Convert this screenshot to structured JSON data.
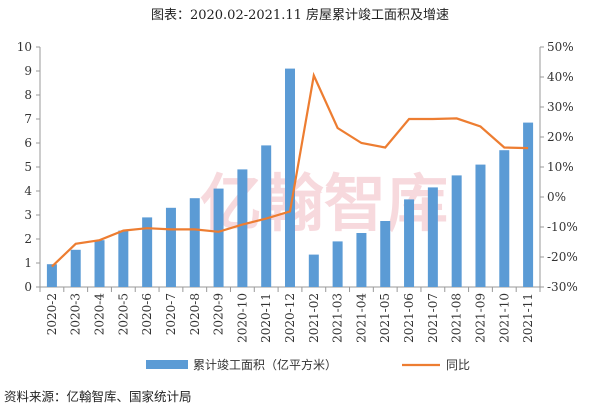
{
  "chart_data": {
    "type": "bar+line",
    "title": "图表：2020.02-2021.11 房屋累计竣工面积及增速",
    "categories": [
      "2020-2",
      "2020-3",
      "2020-4",
      "2020-5",
      "2020-6",
      "2020-7",
      "2020-8",
      "2020-9",
      "2020-10",
      "2020-11",
      "2020-12",
      "2021-02",
      "2021-03",
      "2021-04",
      "2021-05",
      "2021-06",
      "2021-07",
      "2021-08",
      "2021-09",
      "2021-10",
      "2021-11"
    ],
    "series": [
      {
        "name": "累计竣工面积（亿平方米）",
        "type": "bar",
        "axis": "left",
        "color": "#5b9bd5",
        "values": [
          0.95,
          1.55,
          1.95,
          2.35,
          2.9,
          3.3,
          3.7,
          4.1,
          4.9,
          5.9,
          9.1,
          1.35,
          1.9,
          2.25,
          2.75,
          3.65,
          4.15,
          4.65,
          5.1,
          5.7,
          6.85
        ]
      },
      {
        "name": "同比",
        "type": "line",
        "axis": "right",
        "color": "#ed7d31",
        "values": [
          -23.2,
          -15.6,
          -14.4,
          -11.2,
          -10.4,
          -10.8,
          -10.8,
          -11.6,
          -9.2,
          -7.2,
          -4.8,
          40.5,
          23,
          18,
          16.5,
          26,
          26,
          26.2,
          23.5,
          16.5,
          16.3
        ]
      }
    ],
    "yleft": {
      "ylim": [
        0,
        10
      ],
      "ticks": [
        "0",
        "1",
        "2",
        "3",
        "4",
        "5",
        "6",
        "7",
        "8",
        "9",
        "10"
      ]
    },
    "yright": {
      "ylim": [
        -30,
        50
      ],
      "ticks": [
        "-30%",
        "-20%",
        "-10%",
        "0%",
        "10%",
        "20%",
        "30%",
        "40%",
        "50%"
      ]
    },
    "grid": false,
    "legend": "bottom"
  },
  "watermark": "亿翰智库",
  "source": "资料来源：亿翰智库、国家统计局"
}
